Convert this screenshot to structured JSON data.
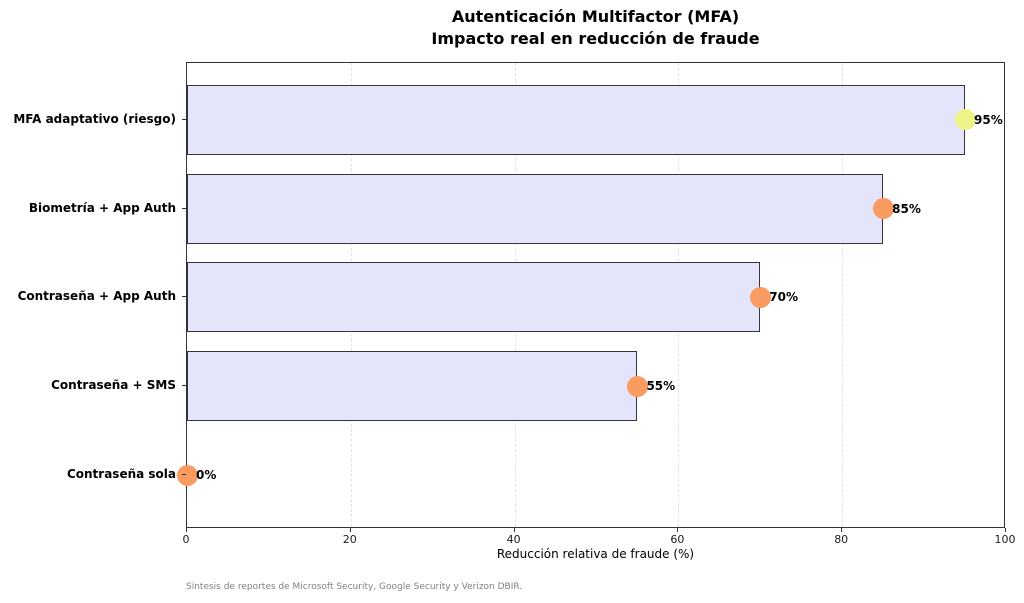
{
  "chart_data": {
    "type": "bar",
    "orientation": "horizontal",
    "title_line1": "Autenticación Multifactor (MFA)",
    "title_line2": "Impacto real en reducción de fraude",
    "categories": [
      "MFA adaptativo (riesgo)",
      "Biometría + App Auth",
      "Contraseña + App Auth",
      "Contraseña + SMS",
      "Contraseña sola"
    ],
    "values": [
      95,
      85,
      70,
      55,
      0
    ],
    "value_labels": [
      "95%",
      "85%",
      "70%",
      "55%",
      "0%"
    ],
    "marker_colors": [
      "#eef287",
      "#fa9b62",
      "#fa9b62",
      "#fa9b62",
      "#fa9b62"
    ],
    "bar_fill": "#e4e4fa",
    "bar_border": "#35353f",
    "xlabel": "Reducción relativa de fraude (%)",
    "xlim": [
      0,
      100
    ],
    "xticks": [
      0,
      20,
      40,
      60,
      80,
      100
    ],
    "grid": "vertical-dashed",
    "legend": "none",
    "footnote": "Síntesis de reportes de Microsoft Security, Google Security y Verizon DBIR."
  }
}
